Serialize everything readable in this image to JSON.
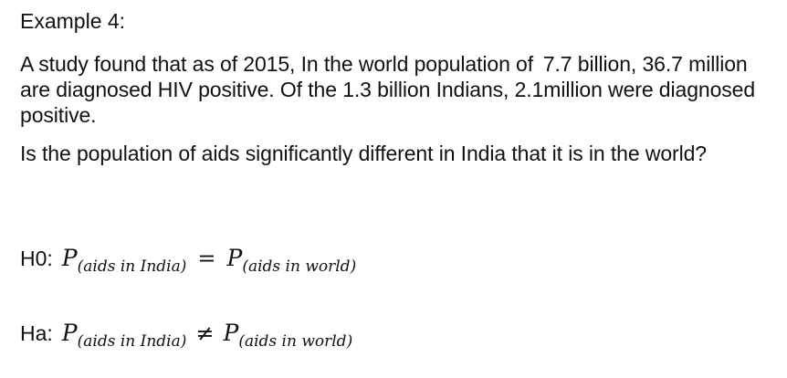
{
  "title": "Example 4:",
  "paragraph1": "A study found that as of 2015, In the world population of  7.7 billion, 36.7 million are diagnosed HIV positive. Of the 1.3 billion Indians, 2.1million were diagnosed positive.",
  "paragraph2": "Is the population of aids significantly different in India that it is in the world?",
  "h0": {
    "label": "H0:",
    "left_symbol": "P",
    "left_subscript": "(aids in India)",
    "operator": "=",
    "right_symbol": "P",
    "right_subscript": "(aids in world)"
  },
  "ha": {
    "label": "Ha:",
    "left_symbol": "P",
    "left_subscript": "(aids in India)",
    "operator": "≠",
    "right_symbol": "P",
    "right_subscript": "(aids in world)"
  }
}
